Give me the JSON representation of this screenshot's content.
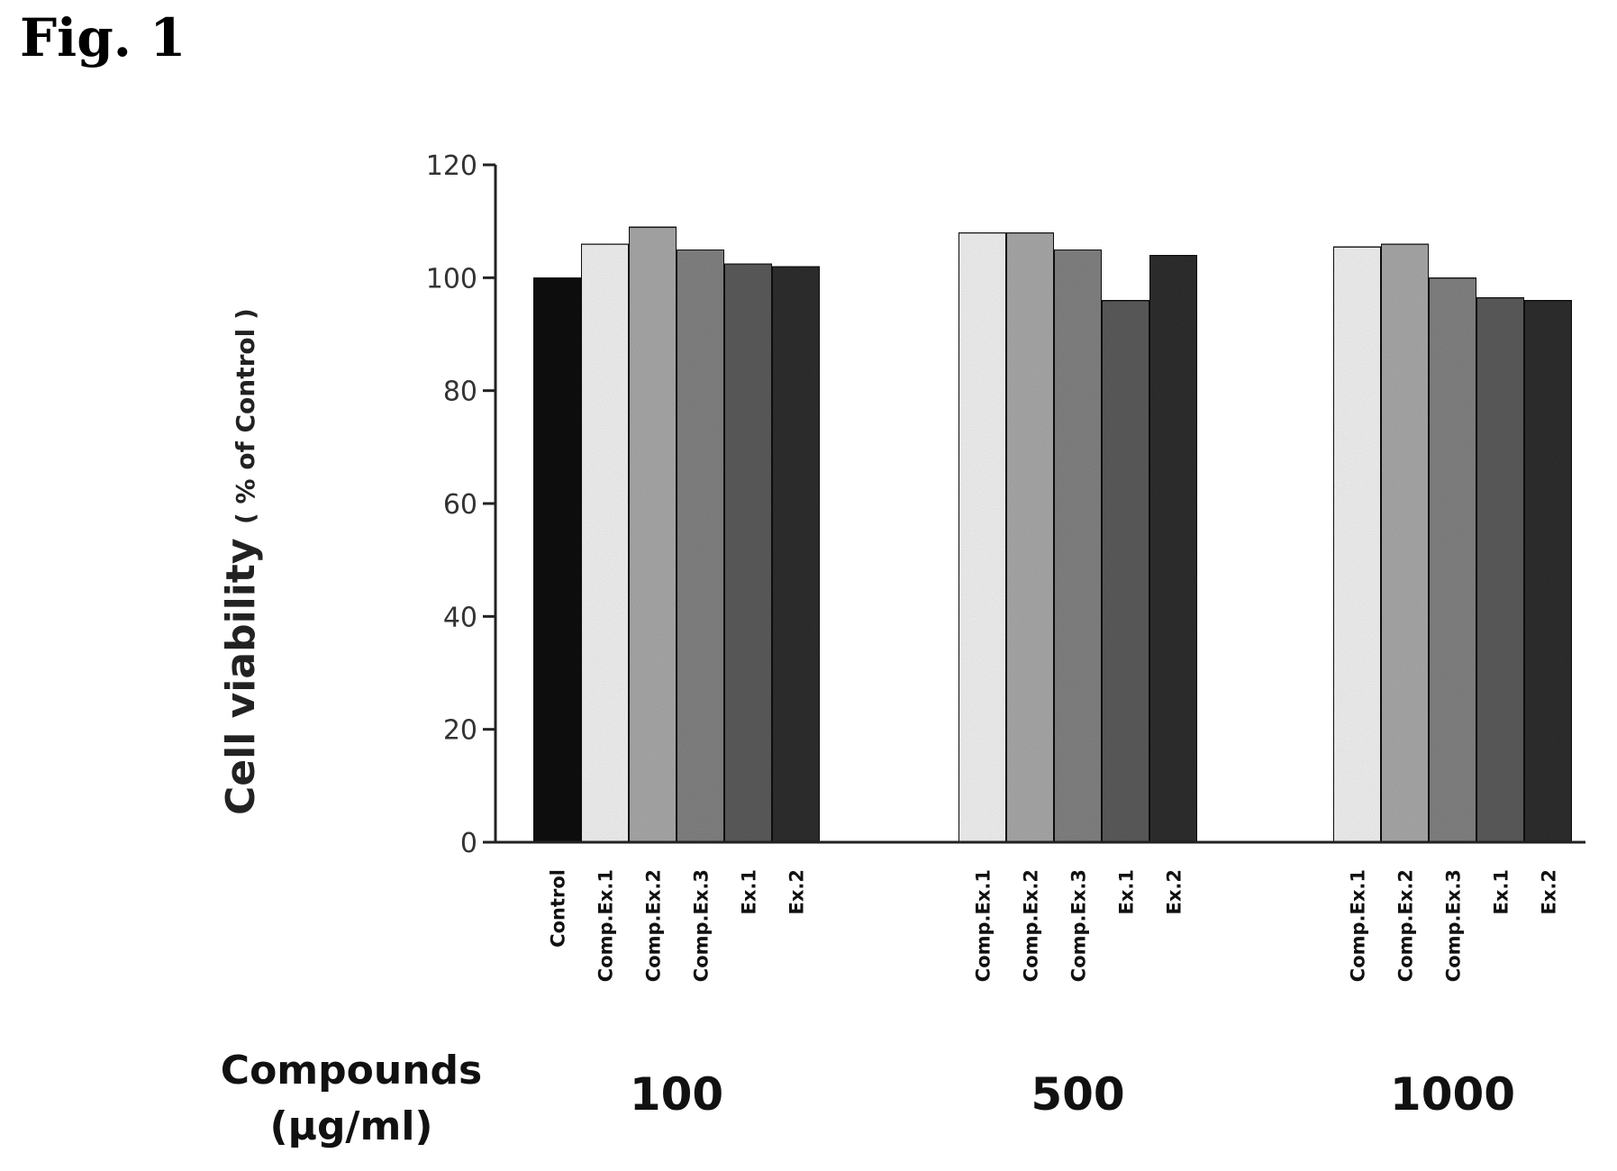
{
  "figure_title": "Fig. 1",
  "chart_data": {
    "type": "bar",
    "title": "",
    "ylabel": "Cell viability",
    "ylabel_unit": "( % of Control )",
    "xlabel_line1": "Compounds",
    "xlabel_line2": "(μg/ml)",
    "ylim": [
      0,
      120
    ],
    "yticks": [
      0,
      20,
      40,
      60,
      80,
      100,
      120
    ],
    "grid": false,
    "groups": [
      {
        "label": "100",
        "bars": [
          {
            "category": "Control",
            "value": 100,
            "color": "#0a0a0a"
          },
          {
            "category": "Comp.Ex.1",
            "value": 106,
            "color": "#eeeeee"
          },
          {
            "category": "Comp.Ex.2",
            "value": 109,
            "color": "#a6a6a6"
          },
          {
            "category": "Comp.Ex.3",
            "value": 105,
            "color": "#808080"
          },
          {
            "category": "Ex.1",
            "value": 102.5,
            "color": "#5a5a5a"
          },
          {
            "category": "Ex.2",
            "value": 102,
            "color": "#2e2e2e"
          }
        ]
      },
      {
        "label": "500",
        "bars": [
          {
            "category": "Comp.Ex.1",
            "value": 108,
            "color": "#eeeeee"
          },
          {
            "category": "Comp.Ex.2",
            "value": 108,
            "color": "#a6a6a6"
          },
          {
            "category": "Comp.Ex.3",
            "value": 105,
            "color": "#808080"
          },
          {
            "category": "Ex.1",
            "value": 96,
            "color": "#5a5a5a"
          },
          {
            "category": "Ex.2",
            "value": 104,
            "color": "#2e2e2e"
          }
        ]
      },
      {
        "label": "1000",
        "bars": [
          {
            "category": "Comp.Ex.1",
            "value": 105.5,
            "color": "#eeeeee"
          },
          {
            "category": "Comp.Ex.2",
            "value": 106,
            "color": "#a6a6a6"
          },
          {
            "category": "Comp.Ex.3",
            "value": 100,
            "color": "#808080"
          },
          {
            "category": "Ex.1",
            "value": 96.5,
            "color": "#5a5a5a"
          },
          {
            "category": "Ex.2",
            "value": 96,
            "color": "#2e2e2e"
          }
        ]
      }
    ]
  }
}
